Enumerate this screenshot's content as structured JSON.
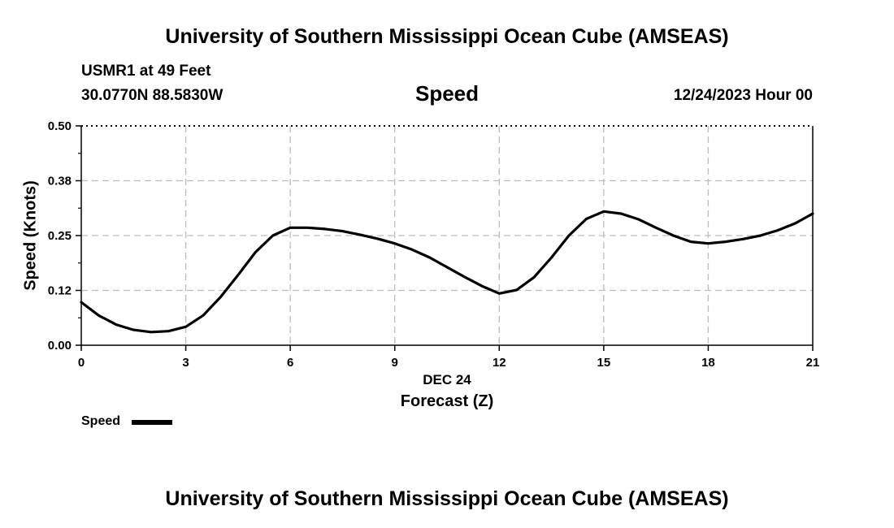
{
  "header": {
    "title_top": "University of Southern Mississippi Ocean Cube (AMSEAS)",
    "station": "USMR1 at 49 Feet",
    "coords": "30.0770N  88.5830W",
    "datetime": "12/24/2023 Hour 00",
    "title_bottom": "University of Southern Mississippi Ocean Cube (AMSEAS)"
  },
  "chart_data": {
    "type": "line",
    "title": "Speed",
    "xlabel": "Forecast (Z)",
    "x_sublabel": "DEC 24",
    "ylabel": "Speed (Knots)",
    "xlim": [
      0,
      21
    ],
    "ylim": [
      0,
      0.5
    ],
    "xticks": [
      0,
      3,
      6,
      9,
      12,
      15,
      18,
      21
    ],
    "yticks": [
      0.0,
      0.125,
      0.25,
      0.375,
      0.5
    ],
    "ytick_labels": [
      "0.00",
      "0.12",
      "0.25",
      "0.38",
      "0.50"
    ],
    "grid": true,
    "legend_position": "bottom-left",
    "series": [
      {
        "name": "Speed",
        "color": "#000000",
        "x": [
          0,
          0.5,
          1,
          1.5,
          2,
          2.5,
          3,
          3.5,
          4,
          4.5,
          5,
          5.5,
          6,
          6.5,
          7,
          7.5,
          8,
          8.5,
          9,
          9.5,
          10,
          10.5,
          11,
          11.5,
          12,
          12.5,
          13,
          13.5,
          14,
          14.5,
          15,
          15.5,
          16,
          16.5,
          17,
          17.5,
          18,
          18.5,
          19,
          19.5,
          20,
          20.5,
          21
        ],
        "y": [
          0.098,
          0.068,
          0.047,
          0.035,
          0.03,
          0.032,
          0.042,
          0.068,
          0.11,
          0.16,
          0.212,
          0.25,
          0.268,
          0.268,
          0.265,
          0.26,
          0.252,
          0.243,
          0.232,
          0.218,
          0.2,
          0.178,
          0.156,
          0.135,
          0.118,
          0.126,
          0.155,
          0.2,
          0.25,
          0.288,
          0.305,
          0.3,
          0.287,
          0.268,
          0.25,
          0.236,
          0.232,
          0.236,
          0.242,
          0.25,
          0.262,
          0.278,
          0.3
        ]
      }
    ]
  }
}
